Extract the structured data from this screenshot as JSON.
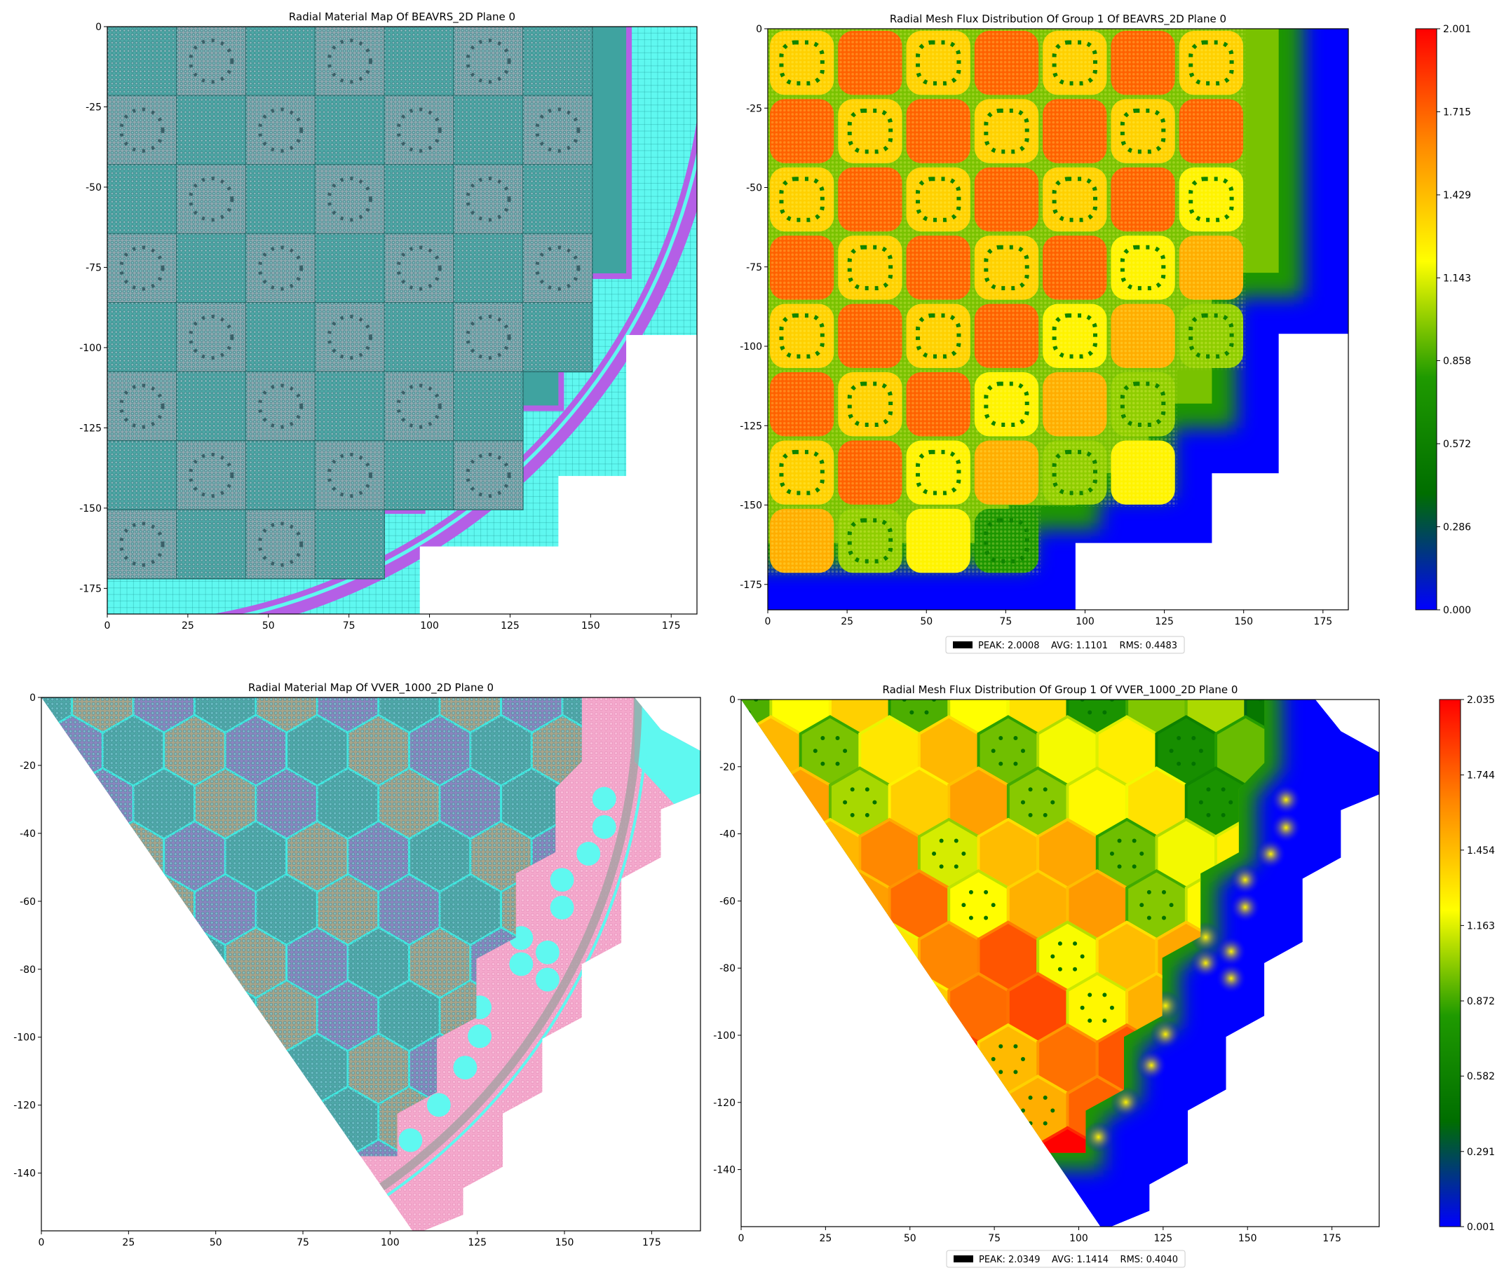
{
  "chart_data": [
    {
      "type": "material_map",
      "title": "Radial Material Map Of BEAVRS_2D Plane 0",
      "xlim": [
        0,
        183
      ],
      "ylim": [
        -183,
        0
      ],
      "xticks": [
        0,
        25,
        50,
        75,
        100,
        125,
        150,
        175
      ],
      "yticks": [
        0,
        -25,
        -50,
        -75,
        -100,
        -125,
        -150,
        -175
      ]
    },
    {
      "type": "flux_map",
      "title": "Radial Mesh Flux Distribution Of Group 1 Of BEAVRS_2D Plane 0",
      "xlim": [
        0,
        183
      ],
      "ylim": [
        -183,
        0
      ],
      "xticks": [
        0,
        25,
        50,
        75,
        100,
        125,
        150,
        175
      ],
      "yticks": [
        0,
        -25,
        -50,
        -75,
        -100,
        -125,
        -150,
        -175
      ],
      "clim": [
        0,
        2.001
      ],
      "cticks": [
        {
          "value": 0,
          "label": "0.000"
        },
        0.286,
        0.572,
        0.858,
        1.143,
        1.429,
        1.715,
        2.001
      ],
      "colormap": [
        "#0000ff",
        "#006e00",
        "#1f9a00",
        "#ffff00",
        "#ff8a00",
        "#ff0000"
      ],
      "legend": "PEAK: 2.0008    AVG: 1.1101    RMS: 0.4483"
    },
    {
      "type": "material_map",
      "title": "Radial Material Map Of VVER_1000_2D Plane 0",
      "xlim": [
        0,
        189
      ],
      "ylim": [
        -157,
        0
      ],
      "xticks": [
        0,
        25,
        50,
        75,
        100,
        125,
        150,
        175
      ],
      "yticks": [
        0,
        -20,
        -40,
        -60,
        -80,
        -100,
        -120,
        -140
      ]
    },
    {
      "type": "flux_map",
      "title": "Radial Mesh Flux Distribution Of Group 1 Of VVER_1000_2D Plane 0",
      "xlim": [
        0,
        189
      ],
      "ylim": [
        -157,
        0
      ],
      "xticks": [
        0,
        25,
        50,
        75,
        100,
        125,
        150,
        175
      ],
      "yticks": [
        0,
        -20,
        -40,
        -60,
        -80,
        -100,
        -120,
        -140
      ],
      "clim": [
        0.001,
        2.035
      ],
      "cticks": [
        0.001,
        0.291,
        0.582,
        0.872,
        1.163,
        1.454,
        1.744,
        2.035
      ],
      "colormap": [
        "#0000ff",
        "#006e00",
        "#1f9a00",
        "#ffff00",
        "#ff8a00",
        "#ff0000"
      ],
      "legend": "PEAK: 2.0349    AVG: 1.1414    RMS: 0.4040"
    }
  ]
}
